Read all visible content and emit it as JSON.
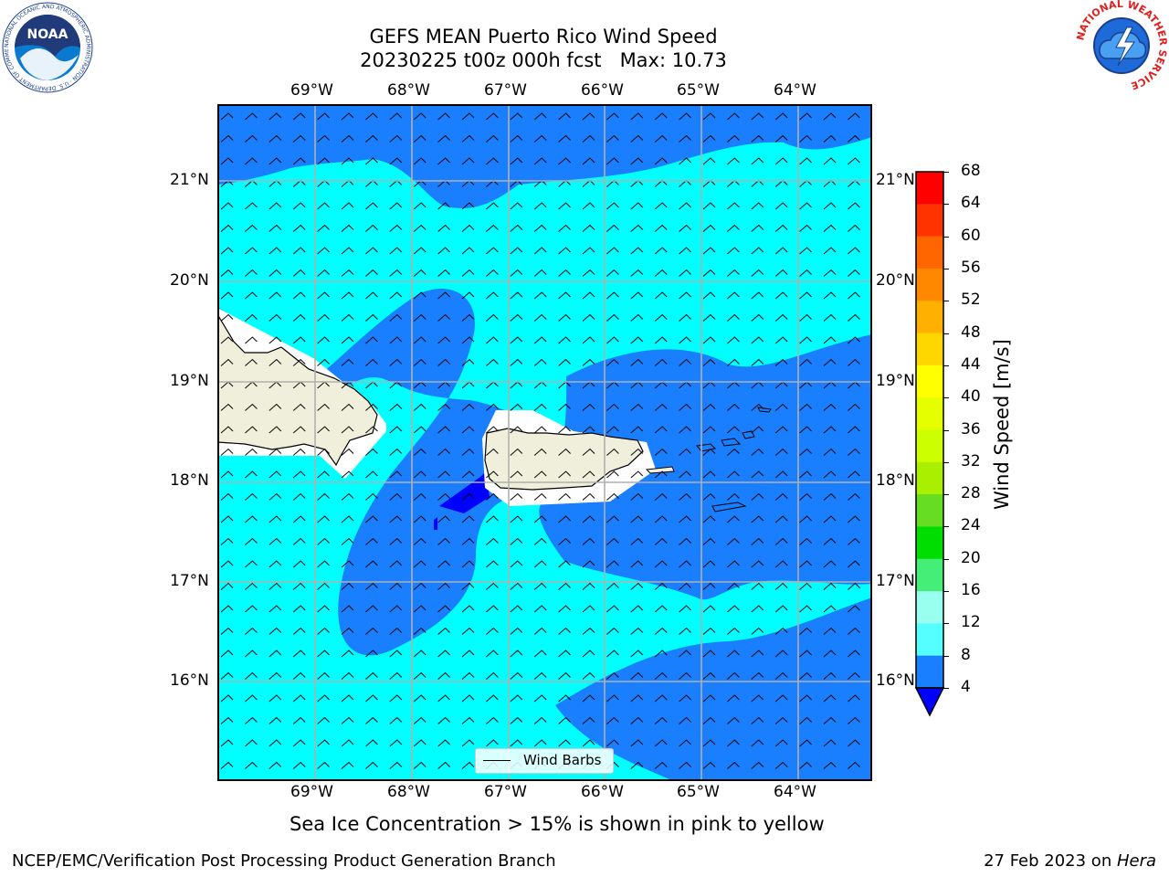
{
  "title": {
    "line1": "GEFS MEAN Puerto Rico Wind Speed",
    "line2": "20230225 t00z 000h fcst   Max: 10.73"
  },
  "map": {
    "lon_labels": [
      "69°W",
      "68°W",
      "67°W",
      "66°W",
      "65°W",
      "64°W"
    ],
    "lat_labels": [
      "21°N",
      "20°N",
      "19°N",
      "18°N",
      "17°N",
      "16°N"
    ],
    "legend": {
      "label": "Wind Barbs"
    }
  },
  "colorbar": {
    "label": "Wind Speed [m/s]",
    "ticks": [
      "68",
      "64",
      "60",
      "56",
      "52",
      "48",
      "44",
      "40",
      "36",
      "32",
      "28",
      "24",
      "20",
      "16",
      "12",
      "8",
      "4"
    ],
    "colors": [
      "#ff0000",
      "#ff3300",
      "#ff6600",
      "#ff8800",
      "#ffb000",
      "#ffd700",
      "#ffff00",
      "#e6ff00",
      "#ccff00",
      "#aaee00",
      "#66dd22",
      "#00dd00",
      "#44ee77",
      "#99ffee",
      "#55ffff",
      "#00ffff",
      "#1a7fff"
    ],
    "extend_color": "#0000ff"
  },
  "colors": {
    "speed_4_8": "#1a7fff",
    "speed_8_12": "#00ffff",
    "speed_below_4": "#0000ff",
    "land": "#efefdc"
  },
  "logos": {
    "noaa": {
      "text": "NOAA",
      "ring_text": "NATIONAL OCEANIC AND ATMOSPHERIC ADMINISTRATION · U.S. DEPARTMENT OF COMMERCE"
    },
    "nws": {
      "ring_text": "NATIONAL WEATHER SERVICE"
    }
  },
  "note": "Sea Ice Concentration > 15% is shown in pink to yellow",
  "footer": {
    "left": "NCEP/EMC/Verification Post Processing Product Generation Branch",
    "date": "27 Feb 2023 on ",
    "machine": "Hera"
  }
}
